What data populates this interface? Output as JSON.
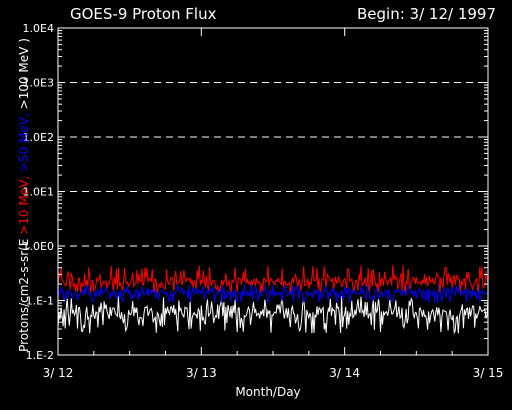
{
  "chart_data": {
    "type": "line",
    "title": "GOES-9 Proton Flux",
    "subtitle": "Begin: 3/ 12/ 1997",
    "xlabel": "Month/Day",
    "ylabel_parts": [
      {
        "text": "Protons/cm2-s-sr(E ",
        "color": "#ffffff"
      },
      {
        "text": ">10 MeV, ",
        "color": "#ff0000"
      },
      {
        "text": ">50 MeV, ",
        "color": "#0000ff"
      },
      {
        "text": ">100 MeV )",
        "color": "#ffffff"
      }
    ],
    "x_ticks": [
      "3/ 12",
      "3/ 13",
      "3/ 14",
      "3/ 15"
    ],
    "x_range": [
      0,
      3
    ],
    "y_scale": "log",
    "y_range": [
      0.01,
      10000
    ],
    "y_ticks": [
      {
        "value": 0.01,
        "label": "1.E-2"
      },
      {
        "value": 0.1,
        "label": "1.E-1"
      },
      {
        "value": 1,
        "label": "1.0E0"
      },
      {
        "value": 10,
        "label": "1.0E1"
      },
      {
        "value": 100,
        "label": "1.0E2"
      },
      {
        "value": 1000,
        "label": "1.0E3"
      },
      {
        "value": 10000,
        "label": "1.0E4"
      }
    ],
    "dashed_gridlines_at": [
      1,
      10,
      100,
      1000
    ],
    "series": [
      {
        "color": "#ffffff",
        "typical_value": 0.06,
        "typical_range": [
          0.025,
          0.12
        ]
      },
      {
        "color": "#0000ff",
        "typical_value": 0.14,
        "typical_range": [
          0.09,
          0.2
        ]
      },
      {
        "color": "#ff0000",
        "typical_value": 0.22,
        "typical_range": [
          0.14,
          0.45
        ]
      }
    ]
  }
}
